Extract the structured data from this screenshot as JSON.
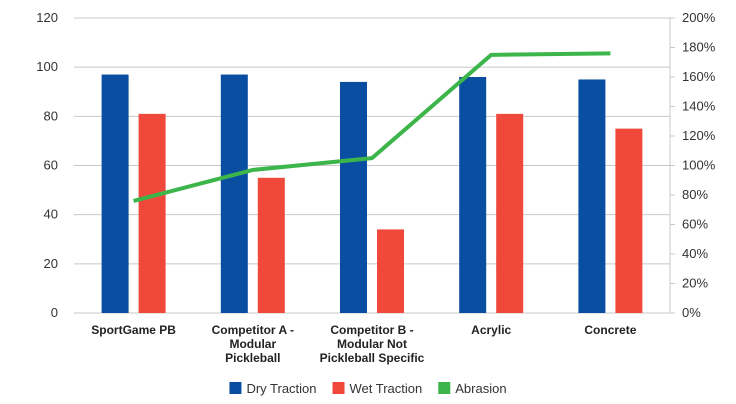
{
  "chart_data": {
    "type": "bar",
    "categories": [
      [
        "SportGame PB"
      ],
      [
        "Competitor A -",
        "Modular",
        "Pickleball"
      ],
      [
        "Competitor B -",
        "Modular Not",
        "Pickleball Specific"
      ],
      [
        "Acrylic"
      ],
      [
        "Concrete"
      ]
    ],
    "series": [
      {
        "name": "Dry Traction",
        "type": "bar",
        "axis": "left",
        "color": "#0a4ea2",
        "values": [
          97,
          97,
          94,
          96,
          95
        ]
      },
      {
        "name": "Wet Traction",
        "type": "bar",
        "axis": "left",
        "color": "#f0483a",
        "values": [
          81,
          55,
          34,
          81,
          75
        ]
      },
      {
        "name": "Abrasion",
        "type": "line",
        "axis": "right",
        "color": "#3cb54a",
        "values": [
          76,
          97,
          105,
          175,
          176
        ]
      }
    ],
    "y_left": {
      "min": 0,
      "max": 120,
      "ticks": [
        "0",
        "20",
        "40",
        "60",
        "80",
        "100",
        "120"
      ]
    },
    "y_right": {
      "min": 0,
      "max": 200,
      "ticks": [
        "0%",
        "20%",
        "40%",
        "60%",
        "80%",
        "100%",
        "120%",
        "140%",
        "160%",
        "180%",
        "200%"
      ]
    },
    "grid": true,
    "legend_position": "bottom"
  }
}
